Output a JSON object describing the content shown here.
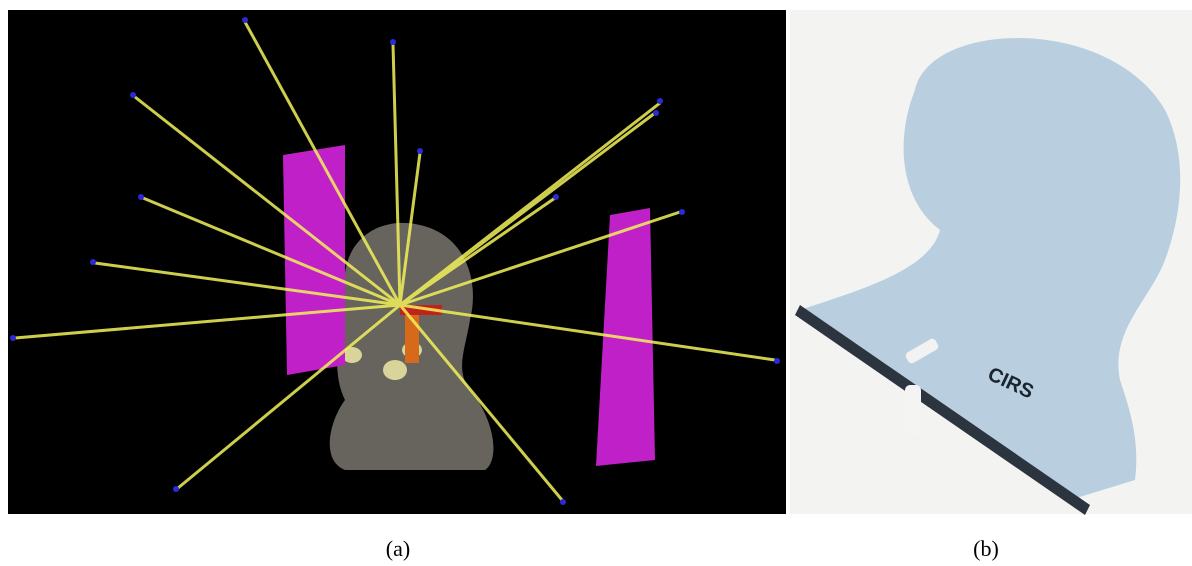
{
  "figure": {
    "panels": [
      {
        "label": "(a)"
      },
      {
        "label": "(b)",
        "phantom_text": "CIRS"
      }
    ]
  }
}
